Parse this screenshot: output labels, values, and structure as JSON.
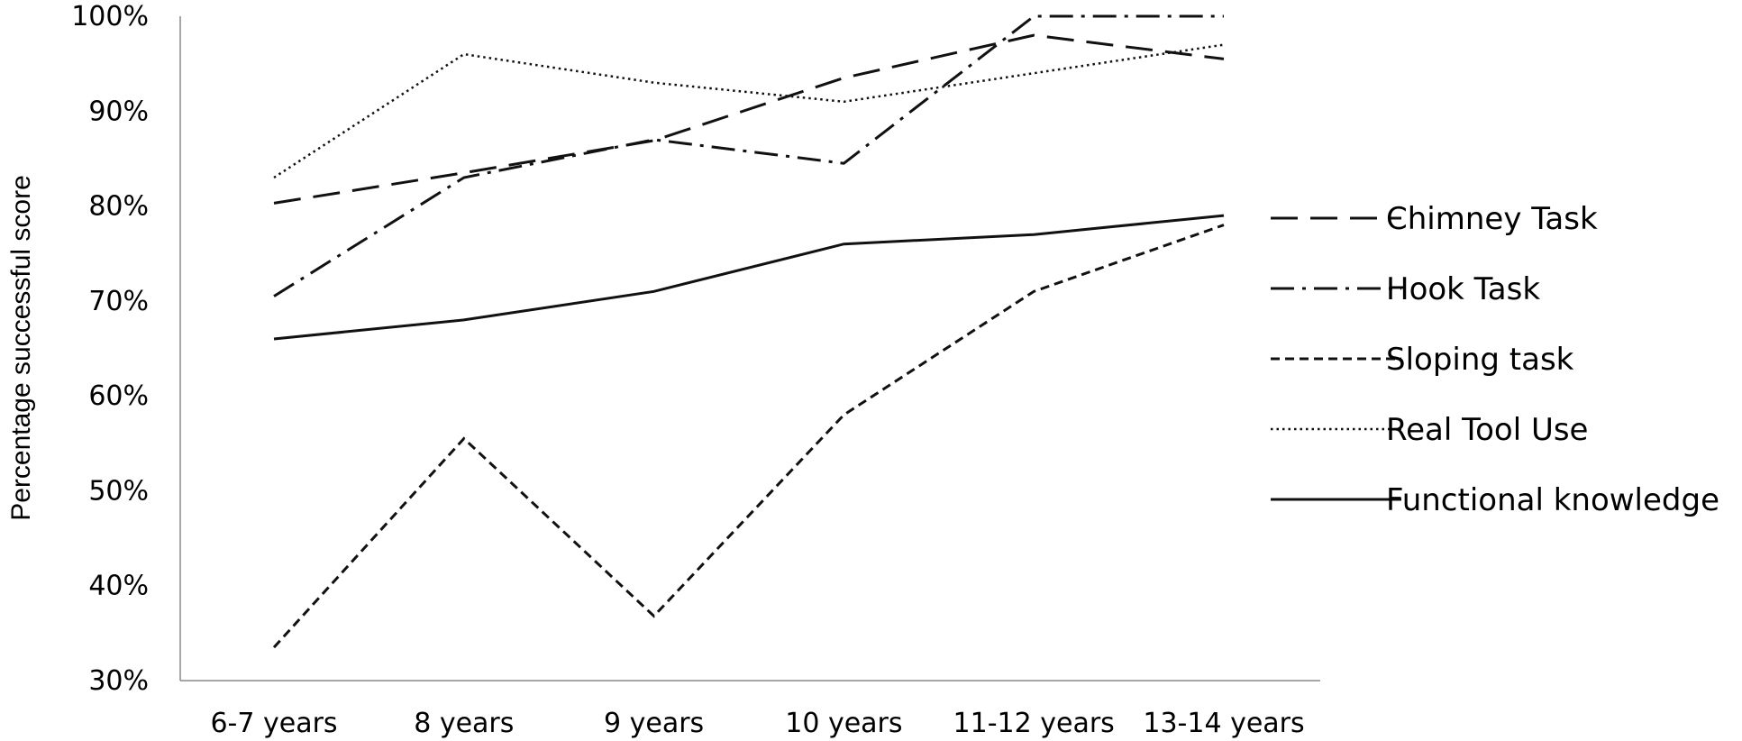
{
  "chart_data": {
    "type": "line",
    "ylabel": "Percentage successful score",
    "xlabel": "",
    "title": "",
    "categories": [
      "6-7 years",
      "8 years",
      "9 years",
      "10 years",
      "11-12 years",
      "13-14 years"
    ],
    "ylim": [
      30,
      100
    ],
    "yticks": [
      30,
      40,
      50,
      60,
      70,
      80,
      90,
      100
    ],
    "ytick_labels": [
      "30%",
      "40%",
      "50%",
      "60%",
      "70%",
      "80%",
      "90%",
      "100%"
    ],
    "grid": false,
    "legend_position": "right",
    "series": [
      {
        "name": "Chimney Task",
        "dash": "long-dash",
        "values": [
          80.3,
          83.5,
          86.9,
          93.5,
          98.0,
          95.5
        ]
      },
      {
        "name": "Hook Task",
        "dash": "dash-dot",
        "values": [
          70.5,
          83.0,
          87.0,
          84.5,
          100,
          100
        ]
      },
      {
        "name": "Sloping task",
        "dash": "short-dash",
        "values": [
          33.5,
          55.5,
          36.8,
          58.0,
          71.0,
          78.0
        ]
      },
      {
        "name": "Real Tool Use",
        "dash": "dotted",
        "values": [
          83.0,
          96.0,
          93.0,
          91.0,
          94.0,
          97.0
        ]
      },
      {
        "name": "Functional knowledge",
        "dash": "solid",
        "values": [
          66.0,
          68.0,
          71.0,
          76.0,
          77.0,
          79.0
        ]
      }
    ]
  }
}
